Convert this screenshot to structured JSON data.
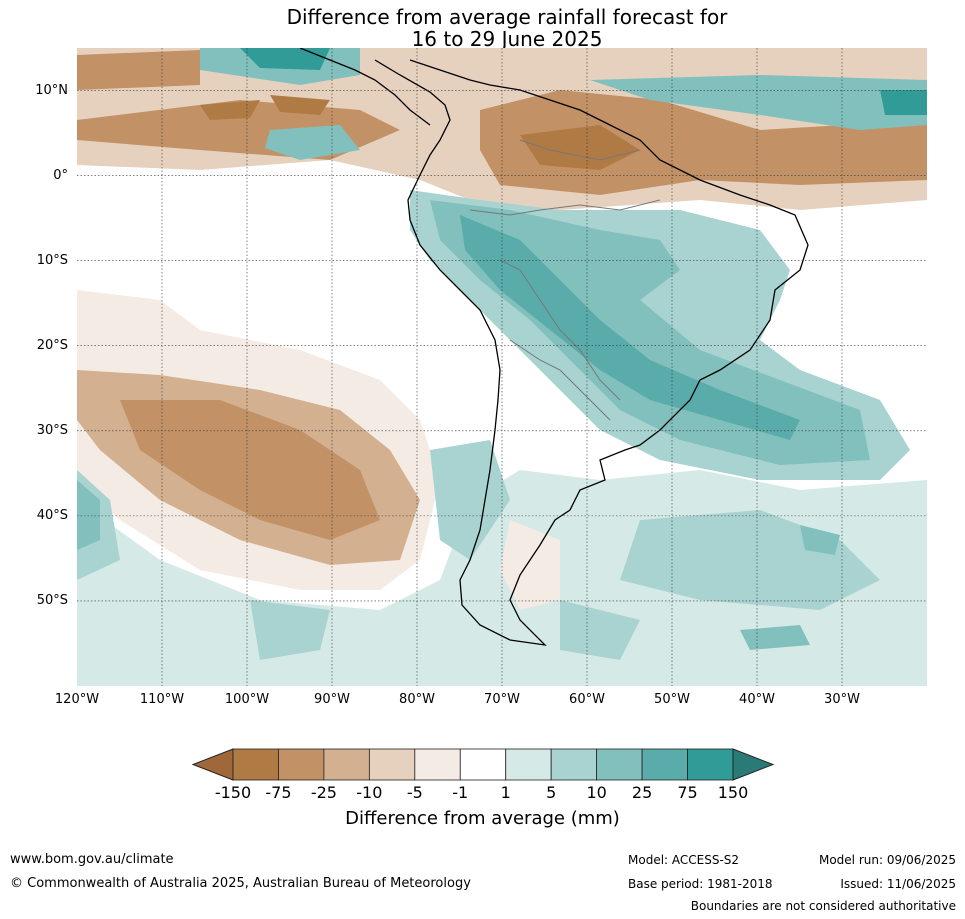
{
  "title": {
    "line1": "Difference from average rainfall forecast for",
    "line2": "16 to 29 June 2025"
  },
  "map": {
    "lon_range": [
      -120,
      -20
    ],
    "lat_range": [
      -60,
      15
    ],
    "latitude_labels": [
      {
        "lat": 10,
        "label": "10°N"
      },
      {
        "lat": 0,
        "label": "0°"
      },
      {
        "lat": -10,
        "label": "10°S"
      },
      {
        "lat": -20,
        "label": "20°S"
      },
      {
        "lat": -30,
        "label": "30°S"
      },
      {
        "lat": -40,
        "label": "40°S"
      },
      {
        "lat": -50,
        "label": "50°S"
      }
    ],
    "longitude_labels": [
      {
        "lon": -120,
        "label": "120°W"
      },
      {
        "lon": -110,
        "label": "110°W"
      },
      {
        "lon": -100,
        "label": "100°W"
      },
      {
        "lon": -90,
        "label": "90°W"
      },
      {
        "lon": -80,
        "label": "80°W"
      },
      {
        "lon": -70,
        "label": "70°W"
      },
      {
        "lon": -60,
        "label": "60°W"
      },
      {
        "lon": -50,
        "label": "50°W"
      },
      {
        "lon": -40,
        "label": "40°W"
      },
      {
        "lon": -30,
        "label": "30°W"
      }
    ],
    "gridlines": "dotted"
  },
  "colorbar": {
    "label": "Difference from average (mm)",
    "tick_labels": [
      "-150",
      "-75",
      "-25",
      "-10",
      "-5",
      "-1",
      "1",
      "5",
      "10",
      "25",
      "75",
      "150"
    ],
    "colors": [
      "#a0683a",
      "#b07a45",
      "#c29266",
      "#d3b08f",
      "#e6d1bf",
      "#f4ebe5",
      "#ffffff",
      "#d5e9e7",
      "#a8d3d1",
      "#82c0be",
      "#5aacaa",
      "#309b97",
      "#2a7a78"
    ],
    "extend": "both"
  },
  "footer": {
    "website": "www.bom.gov.au/climate",
    "copyright": "© Commonwealth of Australia 2025, Australian Bureau of Meteorology",
    "model": "Model: ACCESS-S2",
    "base_period": "Base period: 1981-2018",
    "model_run": "Model run: 09/06/2025",
    "issued": "Issued: 11/06/2025",
    "disclaimer": "Boundaries are not considered authoritative"
  }
}
